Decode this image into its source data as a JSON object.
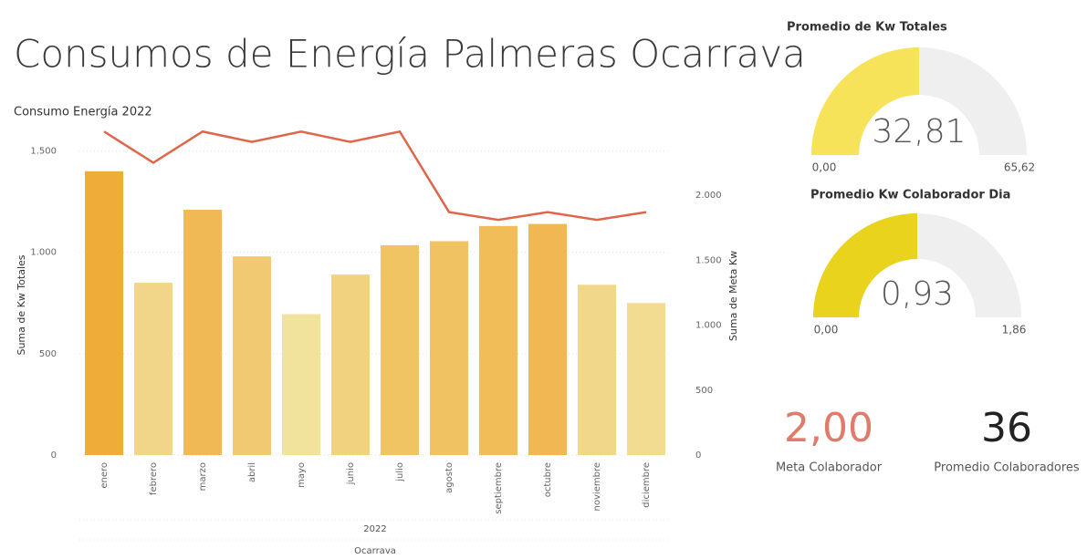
{
  "title": "Consumos de Energía Palmeras Ocarrava",
  "chart_data": [
    {
      "type": "bar-line",
      "title": "Consumo Energía 2022",
      "categories": [
        "enero",
        "febrero",
        "marzo",
        "abril",
        "mayo",
        "junio",
        "julio",
        "agosto",
        "septiembre",
        "octubre",
        "noviembre",
        "diciembre"
      ],
      "series": [
        {
          "name": "Suma de Kw Totales",
          "values": [
            1400,
            850,
            1210,
            980,
            695,
            890,
            1035,
            1055,
            1130,
            1140,
            840,
            750
          ],
          "colors": [
            "#f0ac38",
            "#f1d68a",
            "#f0b955",
            "#f1c972",
            "#f1e29c",
            "#f1d27f",
            "#f0c463",
            "#f0c262",
            "#f0bd59",
            "#f0b752",
            "#f1d78a",
            "#f1dc92"
          ]
        },
        {
          "name": "Suma de Meta Kw",
          "axis": "y2",
          "color": "#e0664a",
          "values": [
            2490,
            2250,
            2490,
            2410,
            2490,
            2410,
            2490,
            1870,
            1810,
            1870,
            1810,
            1870
          ]
        }
      ],
      "ylabel": "Suma de Kw Totales",
      "y2label": "Suma de Meta Kw",
      "xlabel": "2022",
      "xlabel2": "Ocarrava",
      "ylim": [
        0,
        1660
      ],
      "yticks": [
        0,
        500,
        {
          "value": 1000,
          "label": "1.000"
        },
        {
          "value": 1500,
          "label": "1.500"
        }
      ],
      "y2lim": [
        0,
        2590
      ],
      "y2ticks": [
        0,
        500,
        {
          "value": 1000,
          "label": "1.000"
        },
        {
          "value": 1500,
          "label": "1.500"
        },
        {
          "value": 2000,
          "label": "2.000"
        }
      ],
      "grid": true
    },
    {
      "type": "gauge",
      "title": "Promedio de Kw Totales",
      "value": 32.81,
      "value_label": "32,81",
      "min": 0,
      "min_label": "0,00",
      "max": 65.62,
      "max_label": "65,62",
      "color": "#f7e35a",
      "track_color": "#efefef"
    },
    {
      "type": "gauge",
      "title": "Promedio Kw Colaborador Dia",
      "value": 0.93,
      "value_label": "0,93",
      "min": 0,
      "min_label": "0,00",
      "max": 1.86,
      "max_label": "1,86",
      "color": "#e9d31c",
      "track_color": "#efefef"
    }
  ],
  "cards": [
    {
      "value": 2,
      "value_label": "2,00",
      "label": "Meta Colaborador",
      "color": "#e07a6a"
    },
    {
      "value": 36,
      "value_label": "36",
      "label": "Promedio Colaboradores",
      "color": "#222222"
    }
  ]
}
